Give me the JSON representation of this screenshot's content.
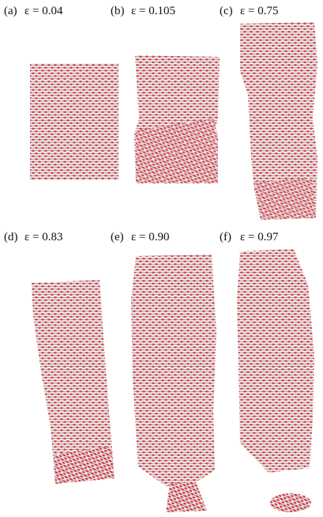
{
  "panels": [
    {
      "label": "(a)",
      "strain": "ε = 0.04"
    },
    {
      "label": "(b)",
      "strain": "ε = 0.105"
    },
    {
      "label": "(c)",
      "strain": "ε = 0.75"
    },
    {
      "label": "(d)",
      "strain": "ε = 0.83"
    },
    {
      "label": "(e)",
      "strain": "ε = 0.90"
    },
    {
      "label": "(f)",
      "strain": "ε = 0.97"
    }
  ]
}
